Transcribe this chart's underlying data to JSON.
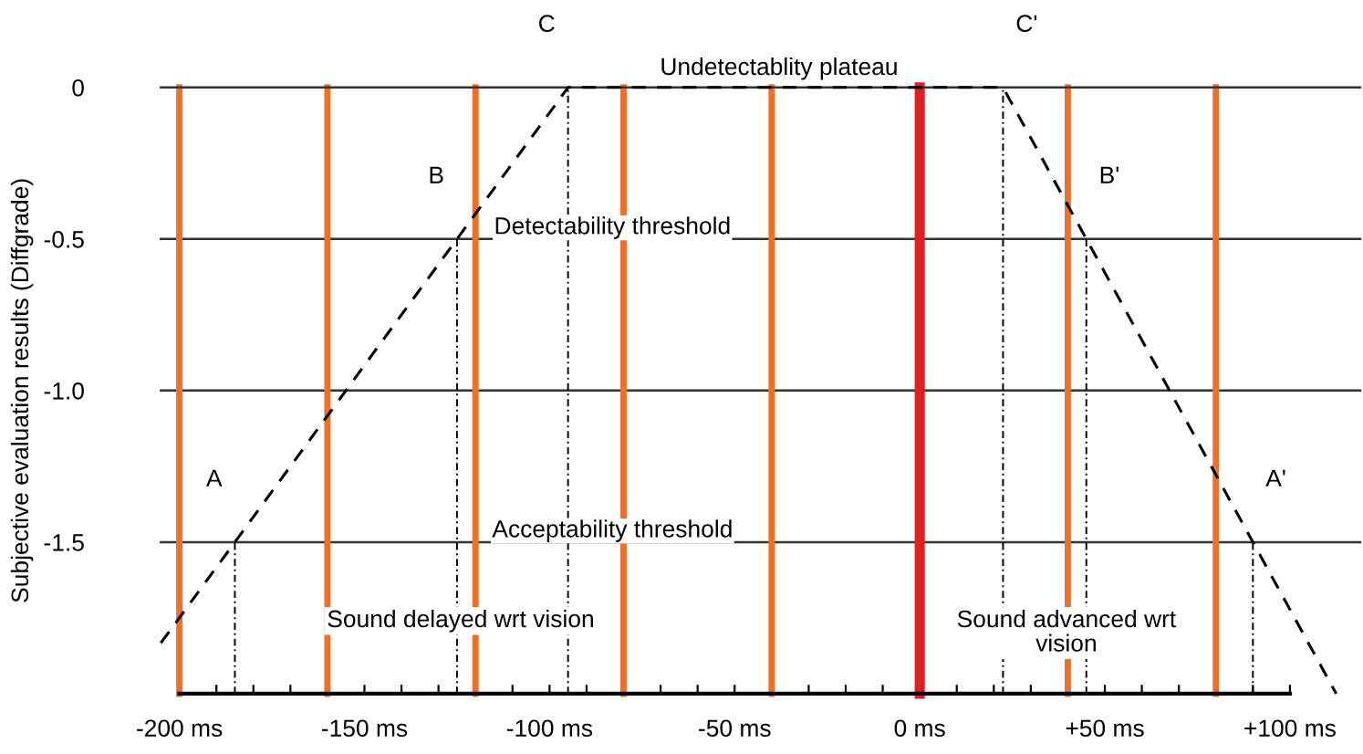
{
  "chart_data": {
    "type": "line",
    "ylabel": "Subjective evaluation results (Diffgrade)",
    "x": [
      -205,
      -185,
      -125,
      -95,
      22.5,
      45,
      90,
      112.5
    ],
    "series": [
      {
        "color": "#000000",
        "values": [
          -1.833,
          -1.5,
          -0.5,
          0,
          0,
          -0.5,
          -1.5,
          -2.0
        ]
      },
      {
        "color": "#000000",
        "line_style": "dotted",
        "x": [
          -185,
          -185
        ],
        "values": [
          -2.0,
          -1.5
        ]
      },
      {
        "color": "#000000",
        "line_style": "dotted",
        "x": [
          -125,
          -125
        ],
        "values": [
          -2.0,
          -0.5
        ]
      },
      {
        "color": "#000000",
        "line_style": "dotted",
        "x": [
          -95,
          -95
        ],
        "values": [
          -2.0,
          0
        ]
      },
      {
        "color": "#000000",
        "line_style": "dotted",
        "x": [
          22.5,
          22.5
        ],
        "values": [
          -2.0,
          0
        ]
      },
      {
        "color": "#000000",
        "line_style": "dotted",
        "x": [
          45,
          45
        ],
        "values": [
          -2.0,
          -0.5
        ]
      },
      {
        "color": "#000000",
        "line_style": "dotted",
        "x": [
          90,
          90
        ],
        "values": [
          -2.0,
          -1.5
        ]
      }
    ],
    "line_style": "dashed",
    "xlim": [
      -205,
      119
    ],
    "ylim": [
      -2.0,
      0
    ],
    "xticks": [
      {
        "value": -200,
        "label": "-200 ms"
      },
      {
        "value": -190,
        "label": null
      },
      {
        "value": -180,
        "label": null
      },
      {
        "value": -170,
        "label": null
      },
      {
        "value": -160,
        "label": null
      },
      {
        "value": -150,
        "label": "-150 ms"
      },
      {
        "value": -140,
        "label": null
      },
      {
        "value": -130,
        "label": null
      },
      {
        "value": -120,
        "label": null
      },
      {
        "value": -110,
        "label": null
      },
      {
        "value": -100,
        "label": "-100 ms"
      },
      {
        "value": -90,
        "label": null
      },
      {
        "value": -80,
        "label": null
      },
      {
        "value": -70,
        "label": null
      },
      {
        "value": -60,
        "label": null
      },
      {
        "value": -50,
        "label": "-50 ms"
      },
      {
        "value": -40,
        "label": null
      },
      {
        "value": -30,
        "label": null
      },
      {
        "value": -20,
        "label": null
      },
      {
        "value": -10,
        "label": null
      },
      {
        "value": 0,
        "label": "0 ms"
      },
      {
        "value": 10,
        "label": null
      },
      {
        "value": 20,
        "label": null
      },
      {
        "value": 30,
        "label": null
      },
      {
        "value": 40,
        "label": null
      },
      {
        "value": 50,
        "label": "+50 ms"
      },
      {
        "value": 60,
        "label": null
      },
      {
        "value": 70,
        "label": null
      },
      {
        "value": 80,
        "label": null
      },
      {
        "value": 90,
        "label": null
      },
      {
        "value": 100,
        "label": "+100 ms"
      }
    ],
    "yticks": [
      0,
      -0.5,
      {
        "value": -1.0,
        "label": "-1.0"
      },
      -1.5
    ],
    "ref_lines": [
      {
        "axis": "x",
        "value": -200,
        "color": "#f07028"
      },
      {
        "axis": "x",
        "value": -160,
        "color": "#f07028"
      },
      {
        "axis": "x",
        "value": -120,
        "color": "#f07028"
      },
      {
        "axis": "x",
        "value": -80,
        "color": "#f07028"
      },
      {
        "axis": "x",
        "value": -40,
        "color": "#f07028"
      },
      {
        "axis": "x",
        "value": 0,
        "color": "#e02020"
      },
      {
        "axis": "x",
        "value": 40,
        "color": "#f07028"
      },
      {
        "axis": "x",
        "value": 80,
        "color": "#f07028"
      },
      {
        "axis": "y",
        "value": -1.0,
        "color": "#333333"
      },
      {
        "axis": "y",
        "value": -0.5,
        "label": "Detectability threshold",
        "color": "#333333"
      },
      {
        "axis": "y",
        "value": -1.5,
        "label": "Acceptability threshold",
        "color": "#333333"
      }
    ],
    "annotations": [
      {
        "text": "A",
        "x": -185,
        "y": -1.5
      },
      {
        "text": "B",
        "x": -125,
        "y": -0.5
      },
      {
        "text": "C",
        "x": -95,
        "y": 0
      },
      {
        "text": "C'",
        "x": 22.5,
        "y": 0
      },
      {
        "text": "B'",
        "x": 45,
        "y": -0.5
      },
      {
        "text": "A'",
        "x": 90,
        "y": -1.5
      },
      {
        "text": "Undetectablity plateau",
        "x": -38,
        "y": 0
      },
      "Sound delayed wrt vision",
      "Sound advanced wrt\nvision"
    ]
  }
}
